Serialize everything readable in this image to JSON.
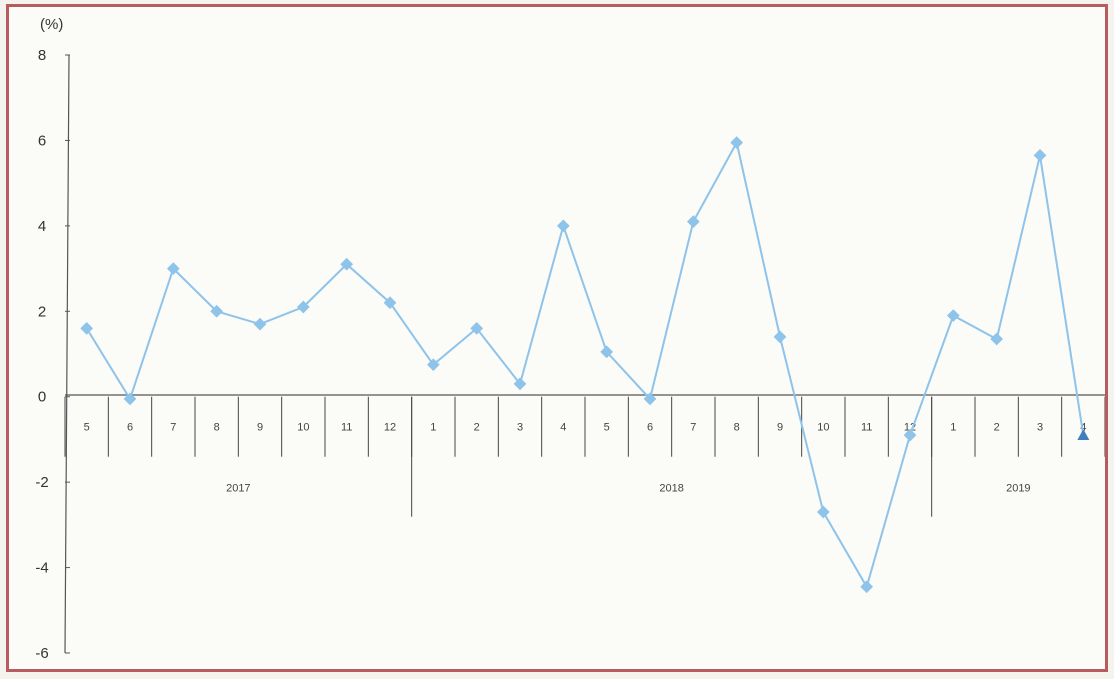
{
  "chart_data": {
    "type": "line",
    "unit_label": "(%)",
    "ylim": [
      -6,
      8
    ],
    "yticks": [
      8,
      6,
      4,
      2,
      0,
      -2,
      -4,
      -6
    ],
    "grid": false,
    "categories": [
      "5",
      "6",
      "7",
      "8",
      "9",
      "10",
      "11",
      "12",
      "1",
      "2",
      "3",
      "4",
      "5",
      "6",
      "7",
      "8",
      "9",
      "10",
      "11",
      "12",
      "1",
      "2",
      "3",
      "4"
    ],
    "groups": [
      {
        "label": "2017",
        "start": 0,
        "end": 7
      },
      {
        "label": "2018",
        "start": 8,
        "end": 19
      },
      {
        "label": "2019",
        "start": 20,
        "end": 23
      }
    ],
    "series": [
      {
        "color": "#8ec3ea",
        "values": [
          1.6,
          -0.05,
          3.0,
          2.0,
          1.7,
          2.1,
          3.1,
          2.2,
          0.75,
          1.6,
          0.3,
          4.0,
          1.05,
          -0.05,
          4.1,
          5.95,
          1.4,
          -2.7,
          -4.45,
          -0.9,
          1.9,
          1.35,
          5.65,
          -0.9
        ]
      }
    ]
  }
}
